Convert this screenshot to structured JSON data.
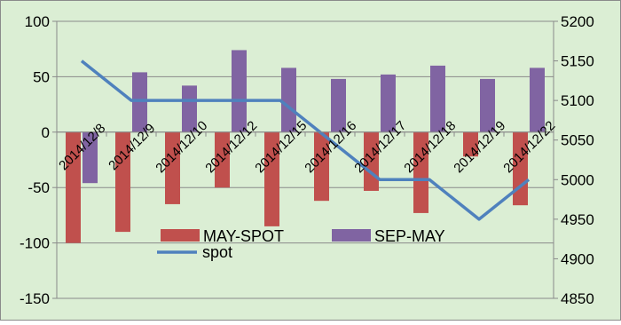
{
  "chart_data": {
    "type": "bar",
    "categories": [
      "2014/12/8",
      "2014/12/9",
      "2014/12/10",
      "2014/12/12",
      "2014/12/15",
      "2014/12/16",
      "2014/12/17",
      "2014/12/18",
      "2014/12/19",
      "2014/12/22"
    ],
    "series": [
      {
        "name": "MAY-SPOT",
        "type": "bar",
        "axis": "left",
        "color": "#c0504d",
        "values": [
          -100,
          -90,
          -65,
          -50,
          -85,
          -62,
          -53,
          -73,
          -22,
          -66
        ]
      },
      {
        "name": "SEP-MAY",
        "type": "bar",
        "axis": "left",
        "color": "#8064a2",
        "values": [
          -46,
          54,
          42,
          74,
          58,
          48,
          52,
          60,
          48,
          58
        ]
      },
      {
        "name": "spot",
        "type": "line",
        "axis": "right",
        "color": "#4f81bd",
        "values": [
          5150,
          5100,
          5100,
          5100,
          5100,
          5050,
          5000,
          5000,
          4950,
          5000
        ]
      }
    ],
    "y_left": {
      "min": -150,
      "max": 100,
      "step": 50,
      "ticks": [
        "-150",
        "-100",
        "-50",
        "0",
        "50",
        "100"
      ]
    },
    "y_right": {
      "min": 4850,
      "max": 5200,
      "step": 50,
      "ticks": [
        "4850",
        "4900",
        "4950",
        "5000",
        "5050",
        "5100",
        "5150",
        "5200"
      ]
    },
    "grid": "horizontal",
    "legend": "bottom-center, inside plot",
    "background_color": "#dbeed4",
    "gridline_color": "#8a8a8a"
  }
}
